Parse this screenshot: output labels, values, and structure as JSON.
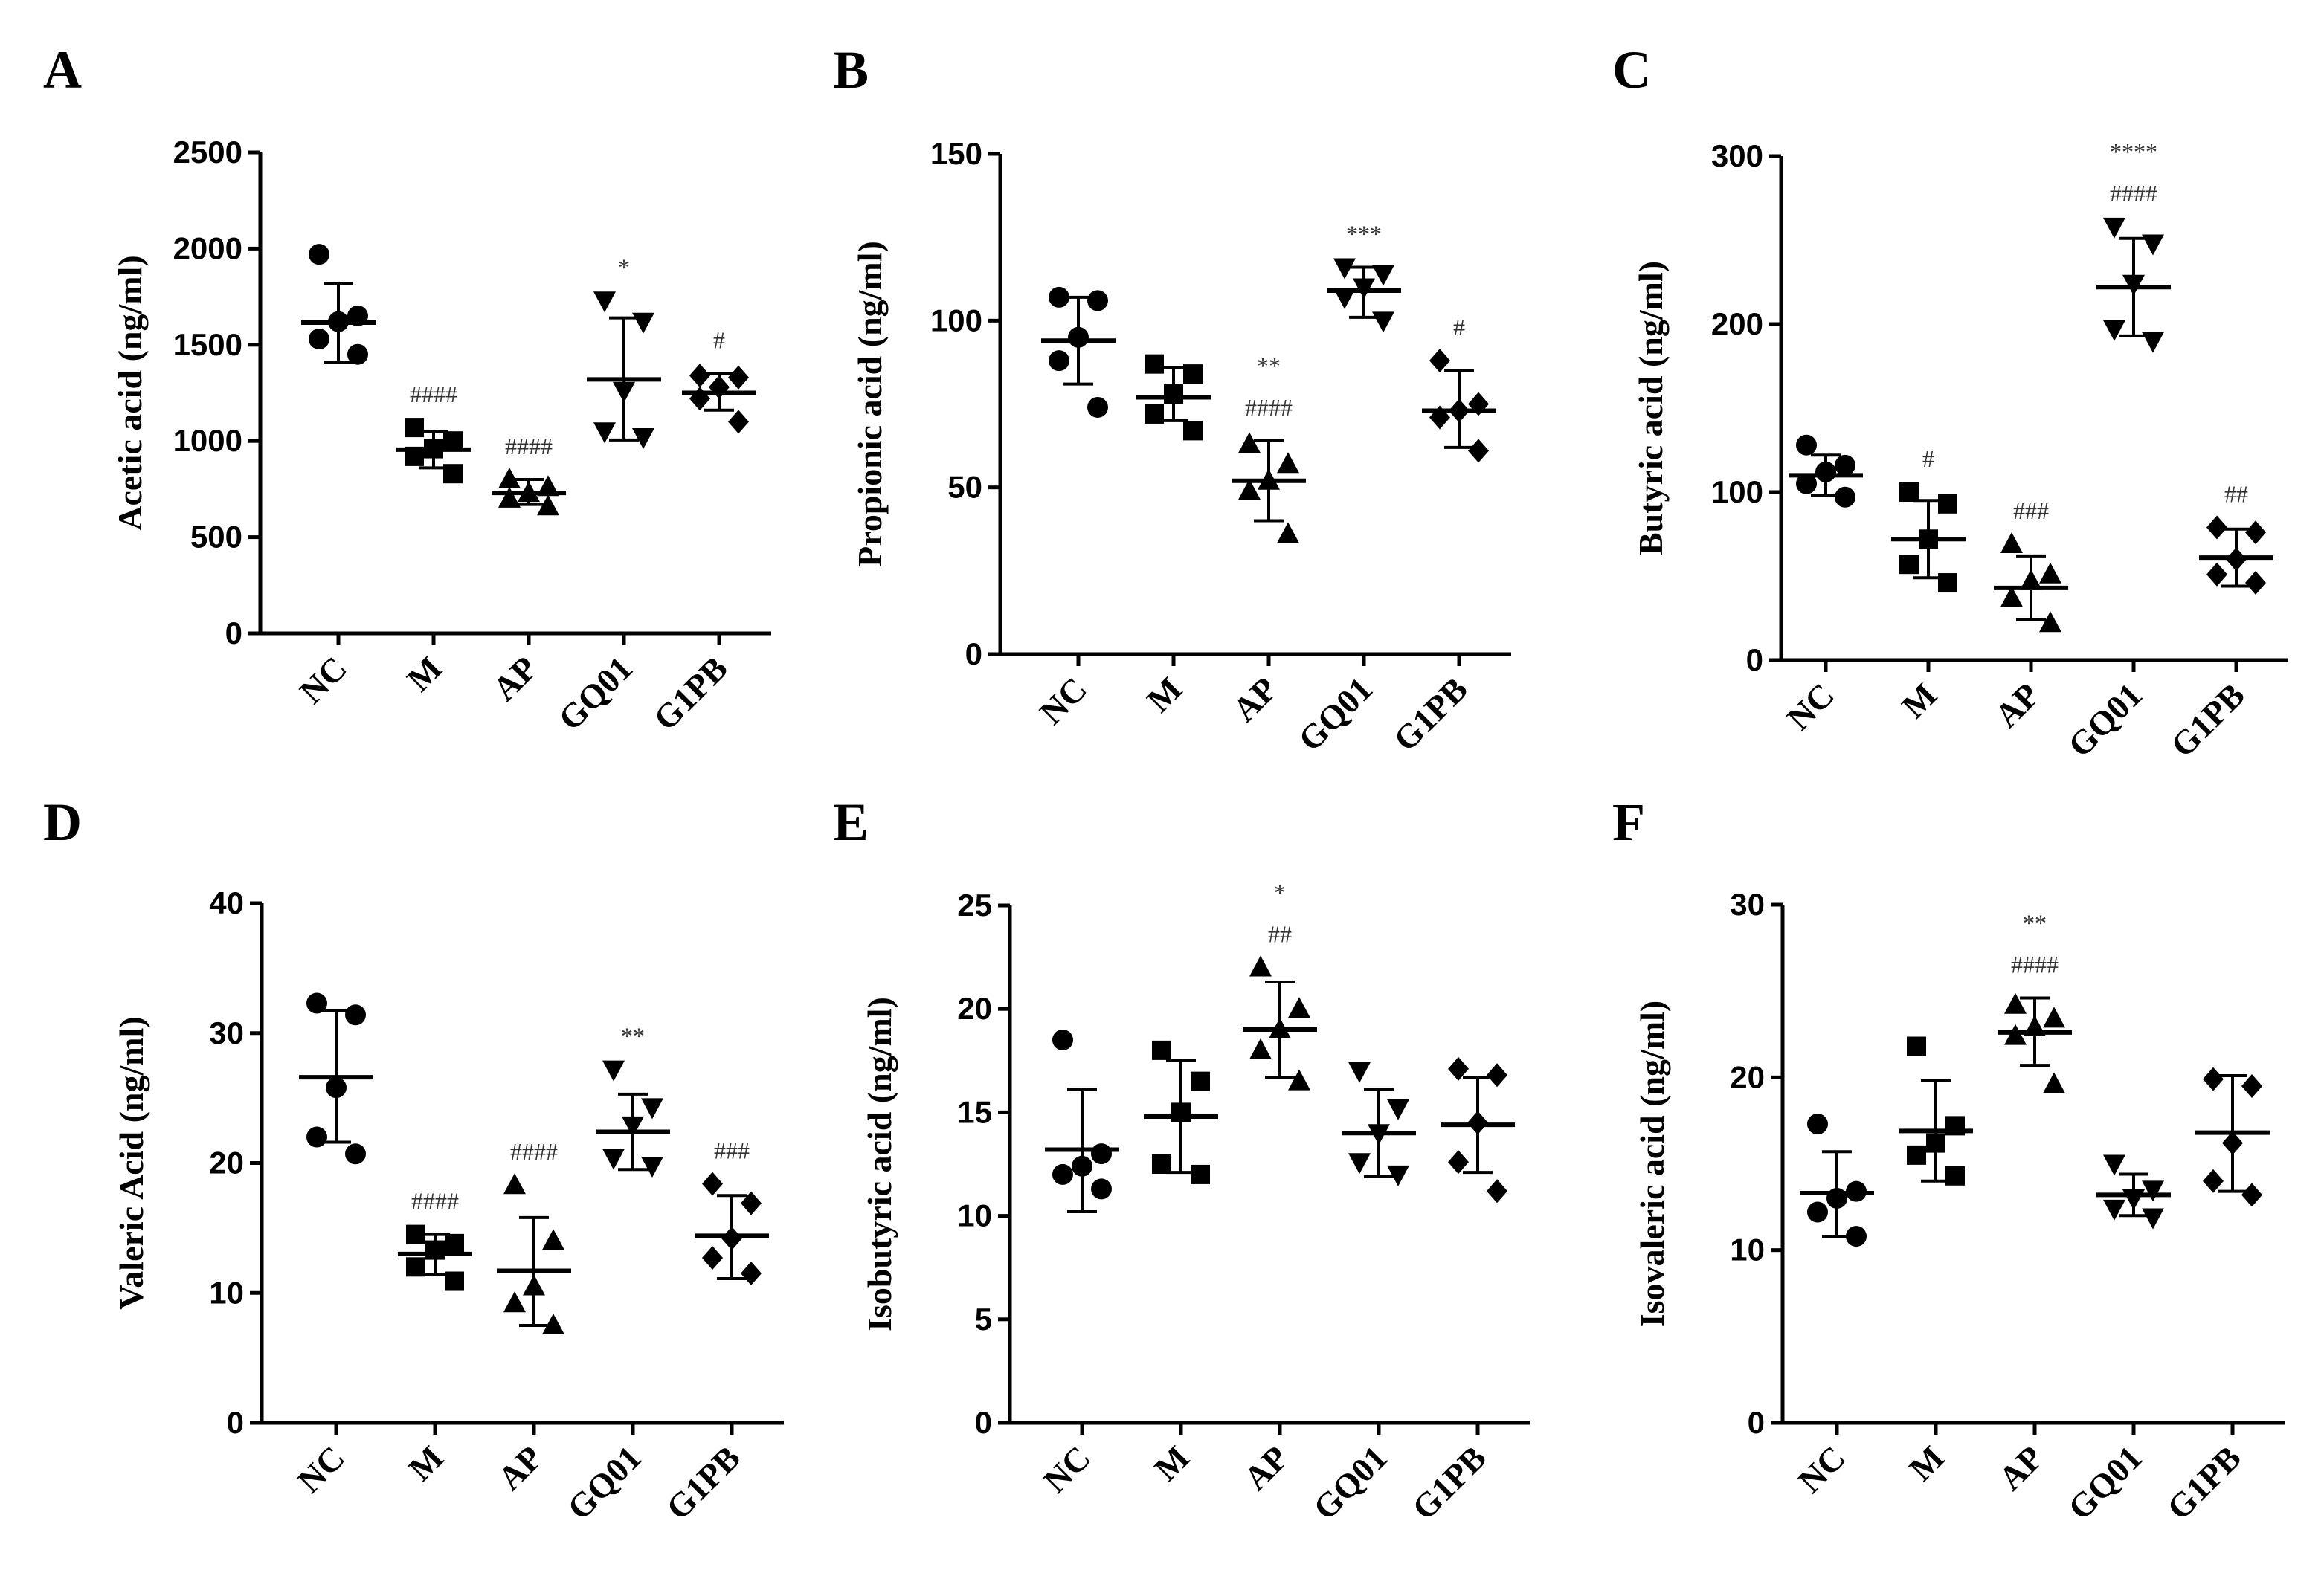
{
  "chart_data": [
    {
      "panel": "A",
      "type": "scatter",
      "ylabel": "Acetic acid (ng/ml)",
      "ylim": [
        0,
        2500
      ],
      "yticks": [
        0,
        500,
        1000,
        1500,
        2000,
        2500
      ],
      "categories": [
        "NC",
        "M",
        "AP",
        "GQ01",
        "G1PB"
      ],
      "groups": [
        {
          "name": "NC",
          "marker": "circle",
          "points": [
            1970,
            1650,
            1620,
            1530,
            1450
          ],
          "mean": 1615,
          "sd_low": 1410,
          "sd_high": 1820,
          "sig": []
        },
        {
          "name": "M",
          "marker": "square",
          "points": [
            1070,
            1000,
            960,
            920,
            830
          ],
          "mean": 955,
          "sd_low": 860,
          "sd_high": 1050,
          "sig": [
            "####"
          ]
        },
        {
          "name": "AP",
          "marker": "triangle-up",
          "points": [
            800,
            760,
            730,
            700,
            660
          ],
          "mean": 730,
          "sd_low": 670,
          "sd_high": 800,
          "sig": [
            "####"
          ]
        },
        {
          "name": "GQ01",
          "marker": "triangle-down",
          "points": [
            1730,
            1620,
            1260,
            1050,
            1020
          ],
          "mean": 1320,
          "sd_low": 1005,
          "sd_high": 1640,
          "sig": [
            "*"
          ]
        },
        {
          "name": "G1PB",
          "marker": "diamond",
          "points": [
            1340,
            1330,
            1280,
            1220,
            1100
          ],
          "mean": 1250,
          "sd_low": 1160,
          "sd_high": 1350,
          "sig": [
            "#"
          ]
        }
      ]
    },
    {
      "panel": "B",
      "type": "scatter",
      "ylabel": "Propionic acid (ng/ml)",
      "ylim": [
        0,
        150
      ],
      "yticks": [
        0,
        50,
        100,
        150
      ],
      "categories": [
        "NC",
        "M",
        "AP",
        "GQ01",
        "G1PB"
      ],
      "groups": [
        {
          "name": "NC",
          "marker": "circle",
          "points": [
            107,
            106,
            95,
            88,
            74
          ],
          "mean": 94,
          "sd_low": 81,
          "sd_high": 107,
          "sig": []
        },
        {
          "name": "M",
          "marker": "square",
          "points": [
            87,
            84,
            78,
            72,
            67
          ],
          "mean": 77,
          "sd_low": 70,
          "sd_high": 86,
          "sig": []
        },
        {
          "name": "AP",
          "marker": "triangle-up",
          "points": [
            63,
            57,
            52,
            49,
            36
          ],
          "mean": 52,
          "sd_low": 40,
          "sd_high": 64,
          "sig": [
            "**",
            "####"
          ]
        },
        {
          "name": "GQ01",
          "marker": "triangle-down",
          "points": [
            116,
            114,
            110,
            107,
            100
          ],
          "mean": 109,
          "sd_low": 101,
          "sd_high": 116,
          "sig": [
            "***"
          ]
        },
        {
          "name": "G1PB",
          "marker": "diamond",
          "points": [
            88,
            75,
            73,
            71,
            61
          ],
          "mean": 73,
          "sd_low": 62,
          "sd_high": 85,
          "sig": [
            "#"
          ]
        }
      ]
    },
    {
      "panel": "C",
      "type": "scatter",
      "ylabel": "Butyric acid (ng/ml)",
      "ylim": [
        0,
        300
      ],
      "yticks": [
        0,
        100,
        200,
        300
      ],
      "categories": [
        "NC",
        "M",
        "AP",
        "GQ01",
        "G1PB"
      ],
      "groups": [
        {
          "name": "NC",
          "marker": "circle",
          "points": [
            128,
            116,
            112,
            105,
            97
          ],
          "mean": 110,
          "sd_low": 98,
          "sd_high": 122,
          "sig": []
        },
        {
          "name": "M",
          "marker": "square",
          "points": [
            100,
            93,
            72,
            57,
            46
          ],
          "mean": 72,
          "sd_low": 49,
          "sd_high": 95,
          "sig": [
            "#"
          ]
        },
        {
          "name": "AP",
          "marker": "triangle-up",
          "points": [
            69,
            51,
            47,
            37,
            22
          ],
          "mean": 43,
          "sd_low": 24,
          "sd_high": 62,
          "sig": [
            "###"
          ]
        },
        {
          "name": "GQ01",
          "marker": "triangle-down",
          "points": [
            258,
            248,
            224,
            197,
            190
          ],
          "mean": 222,
          "sd_low": 193,
          "sd_high": 251,
          "sig": [
            "****",
            "####"
          ]
        },
        {
          "name": "G1PB",
          "marker": "diamond",
          "points": [
            79,
            76,
            60,
            51,
            46
          ],
          "mean": 61,
          "sd_low": 44,
          "sd_high": 78,
          "sig": [
            "##"
          ]
        }
      ]
    },
    {
      "panel": "D",
      "type": "scatter",
      "ylabel": "Valeric Acid (ng/ml)",
      "ylim": [
        0,
        40
      ],
      "yticks": [
        0,
        10,
        20,
        30,
        40
      ],
      "categories": [
        "NC",
        "M",
        "AP",
        "GQ01",
        "G1PB"
      ],
      "groups": [
        {
          "name": "NC",
          "marker": "circle",
          "points": [
            32.3,
            31.4,
            25.8,
            22.0,
            20.7
          ],
          "mean": 26.6,
          "sd_low": 21.6,
          "sd_high": 31.7,
          "sig": []
        },
        {
          "name": "M",
          "marker": "square",
          "points": [
            14.5,
            13.8,
            13.3,
            12.0,
            10.9
          ],
          "mean": 13.0,
          "sd_low": 11.4,
          "sd_high": 14.5,
          "sig": [
            "####"
          ]
        },
        {
          "name": "AP",
          "marker": "triangle-up",
          "points": [
            18.3,
            14.0,
            10.5,
            9.2,
            7.5
          ],
          "mean": 11.7,
          "sd_low": 7.5,
          "sd_high": 15.8,
          "sig": [
            "####"
          ]
        },
        {
          "name": "GQ01",
          "marker": "triangle-down",
          "points": [
            27.2,
            24.3,
            22.9,
            20.4,
            19.8
          ],
          "mean": 22.4,
          "sd_low": 19.5,
          "sd_high": 25.3,
          "sig": [
            "**"
          ]
        },
        {
          "name": "G1PB",
          "marker": "diamond",
          "points": [
            18.4,
            16.9,
            14.2,
            12.7,
            11.5
          ],
          "mean": 14.4,
          "sd_low": 11.1,
          "sd_high": 17.5,
          "sig": [
            "###"
          ]
        }
      ]
    },
    {
      "panel": "E",
      "type": "scatter",
      "ylabel": "Isobutyric acid (ng/ml)",
      "ylim": [
        0,
        25
      ],
      "yticks": [
        0,
        5,
        10,
        15,
        20,
        25
      ],
      "categories": [
        "NC",
        "M",
        "AP",
        "GQ01",
        "G1PB"
      ],
      "groups": [
        {
          "name": "NC",
          "marker": "circle",
          "points": [
            18.5,
            13.0,
            12.4,
            12.0,
            11.3
          ],
          "mean": 13.2,
          "sd_low": 10.2,
          "sd_high": 16.1,
          "sig": []
        },
        {
          "name": "M",
          "marker": "square",
          "points": [
            18.0,
            16.5,
            15.0,
            12.5,
            12.0
          ],
          "mean": 14.8,
          "sd_low": 12.1,
          "sd_high": 17.5,
          "sig": []
        },
        {
          "name": "AP",
          "marker": "triangle-up",
          "points": [
            22.0,
            20.0,
            19.0,
            18.0,
            16.5
          ],
          "mean": 19.0,
          "sd_low": 16.7,
          "sd_high": 21.3,
          "sig": [
            "*",
            "##"
          ]
        },
        {
          "name": "GQ01",
          "marker": "triangle-down",
          "points": [
            17.0,
            15.2,
            14.0,
            12.6,
            12.0
          ],
          "mean": 14.0,
          "sd_low": 11.9,
          "sd_high": 16.1,
          "sig": []
        },
        {
          "name": "G1PB",
          "marker": "diamond",
          "points": [
            17.1,
            16.8,
            14.5,
            12.6,
            11.2
          ],
          "mean": 14.4,
          "sd_low": 12.1,
          "sd_high": 16.7,
          "sig": []
        }
      ]
    },
    {
      "panel": "F",
      "type": "scatter",
      "ylabel": "Isovaleric acid (ng/ml)",
      "ylim": [
        0,
        30
      ],
      "yticks": [
        0,
        10,
        20,
        30
      ],
      "categories": [
        "NC",
        "M",
        "AP",
        "GQ01",
        "G1PB"
      ],
      "groups": [
        {
          "name": "NC",
          "marker": "circle",
          "points": [
            17.3,
            13.4,
            13.0,
            12.2,
            10.8
          ],
          "mean": 13.3,
          "sd_low": 10.8,
          "sd_high": 15.7,
          "sig": []
        },
        {
          "name": "M",
          "marker": "square",
          "points": [
            21.8,
            17.2,
            16.2,
            15.5,
            14.3
          ],
          "mean": 16.9,
          "sd_low": 14.0,
          "sd_high": 19.8,
          "sig": []
        },
        {
          "name": "AP",
          "marker": "triangle-up",
          "points": [
            24.2,
            23.4,
            22.9,
            22.4,
            19.6
          ],
          "mean": 22.6,
          "sd_low": 20.7,
          "sd_high": 24.6,
          "sig": [
            "**",
            "####"
          ]
        },
        {
          "name": "GQ01",
          "marker": "triangle-down",
          "points": [
            15.0,
            13.5,
            13.0,
            12.4,
            11.9
          ],
          "mean": 13.2,
          "sd_low": 12.0,
          "sd_high": 14.4,
          "sig": []
        },
        {
          "name": "G1PB",
          "marker": "diamond",
          "points": [
            19.9,
            19.5,
            16.2,
            14.0,
            13.2
          ],
          "mean": 16.8,
          "sd_low": 13.4,
          "sd_high": 20.1,
          "sig": []
        }
      ]
    }
  ]
}
